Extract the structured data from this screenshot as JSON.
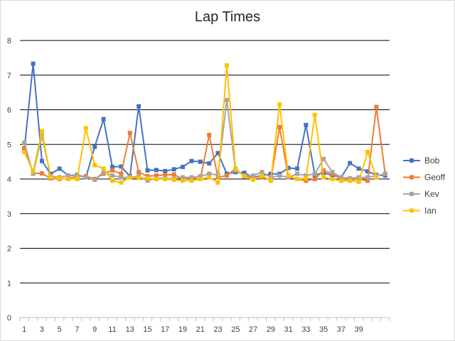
{
  "chart_data": {
    "type": "line",
    "title": "Lap Times",
    "xlabel": "",
    "ylabel": "",
    "ylim": [
      0,
      8
    ],
    "yticks": [
      "0",
      "1",
      "2",
      "3",
      "4",
      "5",
      "6",
      "7",
      "8"
    ],
    "xticks": [
      "1",
      "3",
      "5",
      "7",
      "9",
      "11",
      "13",
      "15",
      "17",
      "19",
      "21",
      "23",
      "25",
      "27",
      "29",
      "31",
      "33",
      "35",
      "37",
      "39"
    ],
    "x": [
      1,
      2,
      3,
      4,
      5,
      6,
      7,
      8,
      9,
      10,
      11,
      12,
      13,
      14,
      15,
      16,
      17,
      18,
      19,
      20,
      21,
      22,
      23,
      24,
      25,
      26,
      27,
      28,
      29,
      30,
      31,
      32,
      33,
      34,
      35,
      36,
      37,
      38,
      39,
      40,
      41,
      42
    ],
    "legend_position": "right",
    "grid": true,
    "series": [
      {
        "name": "Bob",
        "color": "#4472C4",
        "values": [
          4.85,
          7.33,
          4.52,
          4.15,
          4.3,
          4.1,
          4.12,
          4.05,
          4.93,
          5.73,
          4.35,
          4.36,
          4.08,
          6.1,
          4.25,
          4.26,
          4.23,
          4.28,
          4.35,
          4.52,
          4.5,
          4.45,
          4.75,
          4.15,
          4.2,
          4.18,
          4.05,
          4.1,
          4.15,
          4.15,
          4.32,
          4.3,
          5.56,
          4.12,
          4.18,
          4.1,
          4.05,
          4.46,
          4.3,
          4.22,
          4.12,
          4.1
        ]
      },
      {
        "name": "Geoff",
        "color": "#ED7D31",
        "values": [
          4.9,
          4.17,
          4.16,
          4.02,
          4.0,
          4.02,
          4.07,
          4.08,
          4.0,
          4.15,
          4.25,
          4.15,
          5.33,
          4.2,
          4.08,
          4.1,
          4.12,
          4.13,
          4.0,
          4.03,
          4.0,
          5.27,
          4.05,
          4.1,
          4.3,
          4.07,
          4.05,
          4.05,
          3.98,
          5.5,
          4.05,
          4.0,
          3.95,
          4.0,
          4.25,
          4.15,
          4.0,
          3.98,
          4.0,
          3.95,
          6.08,
          4.15
        ]
      },
      {
        "name": "Kev",
        "color": "#A5A5A5",
        "values": [
          5.05,
          4.15,
          5.25,
          4.08,
          4.05,
          4.1,
          4.1,
          4.05,
          3.98,
          4.2,
          4.1,
          4.05,
          4.05,
          4.08,
          3.95,
          4.02,
          4.02,
          4.0,
          4.05,
          4.05,
          4.08,
          4.15,
          4.12,
          6.28,
          4.25,
          4.1,
          4.1,
          4.2,
          4.05,
          4.1,
          4.05,
          4.15,
          4.1,
          4.15,
          4.58,
          4.2,
          4.05,
          4.02,
          4.05,
          4.05,
          4.1,
          4.15
        ]
      },
      {
        "name": "Ian",
        "color": "#FFC000",
        "values": [
          4.78,
          4.22,
          5.38,
          4.05,
          4.02,
          4.0,
          4.0,
          5.47,
          4.4,
          4.3,
          3.95,
          3.9,
          4.05,
          4.03,
          4.02,
          4.0,
          4.0,
          3.98,
          3.95,
          3.95,
          4.0,
          4.05,
          3.9,
          7.28,
          4.3,
          4.08,
          3.98,
          4.1,
          3.95,
          6.15,
          4.1,
          4.0,
          4.02,
          5.85,
          4.05,
          4.0,
          3.95,
          3.95,
          3.92,
          4.78,
          4.05,
          null
        ]
      }
    ]
  }
}
